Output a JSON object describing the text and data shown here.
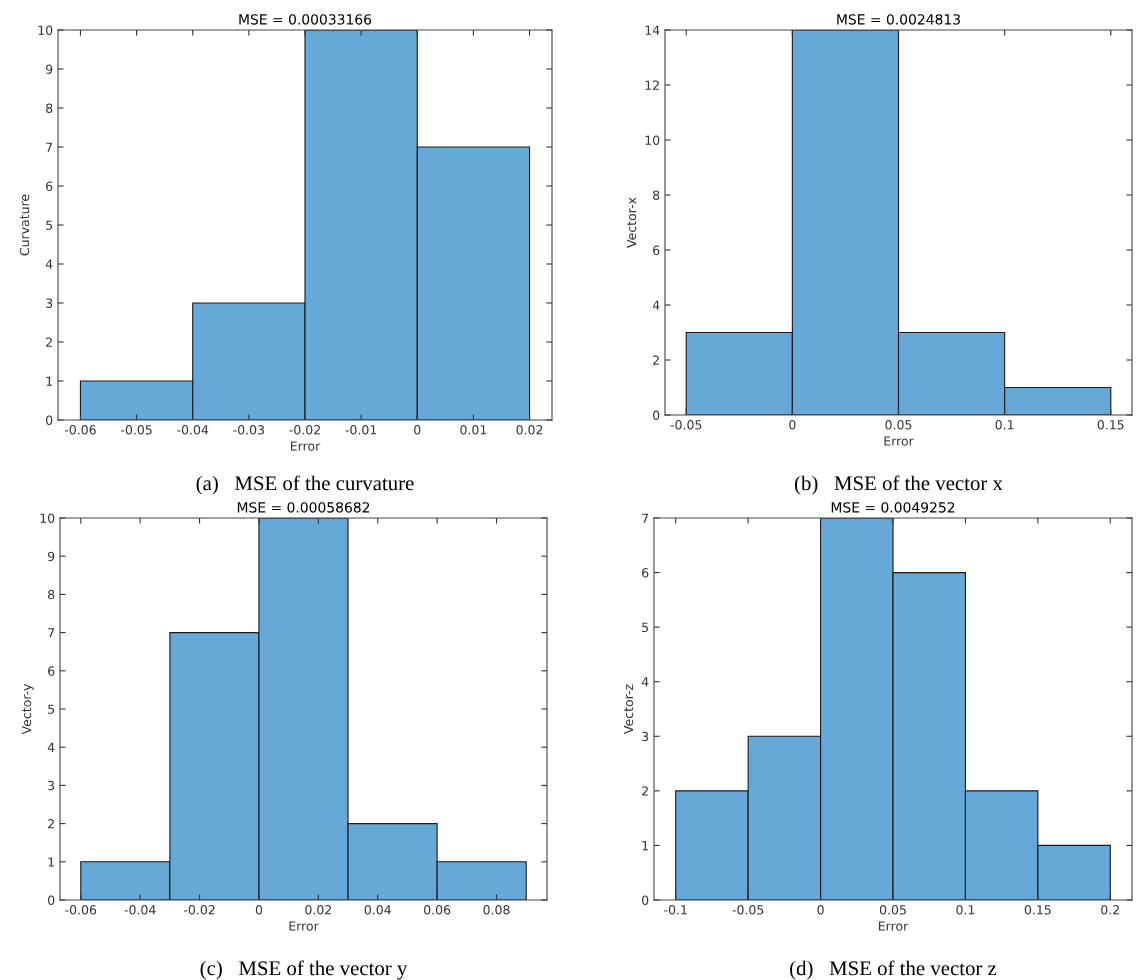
{
  "chart_data": [
    {
      "type": "histogram",
      "title": "MSE = 0.00033166",
      "xlabel": "Error",
      "ylabel": "Curvature",
      "bins": [
        -0.06,
        -0.04,
        -0.02,
        0,
        0.02
      ],
      "values": [
        1,
        3,
        10,
        7
      ],
      "color": "#66a8d8",
      "xlim": [
        -0.064,
        0.024
      ],
      "xticks": [
        -0.06,
        -0.05,
        -0.04,
        -0.03,
        -0.02,
        -0.01,
        0,
        0.01,
        0.02
      ],
      "ylim": [
        0,
        10
      ],
      "yticks": [
        0,
        1,
        2,
        3,
        4,
        5,
        6,
        7,
        8,
        9,
        10
      ],
      "grid": false,
      "annotations": [
        "(a)   MSE of the curvature"
      ]
    },
    {
      "type": "histogram",
      "title": "MSE = 0.0024813",
      "xlabel": "Error",
      "ylabel": "Vector-x",
      "bins": [
        -0.05,
        0,
        0.05,
        0.1,
        0.15
      ],
      "values": [
        3,
        14,
        3,
        1
      ],
      "color": "#66a8d8",
      "xlim": [
        -0.06,
        0.16
      ],
      "xticks": [
        -0.05,
        0,
        0.05,
        0.1,
        0.15
      ],
      "ylim": [
        0,
        14
      ],
      "yticks": [
        0,
        2,
        4,
        6,
        8,
        10,
        12,
        14
      ],
      "grid": false,
      "annotations": [
        "(b)   MSE of the vector x"
      ]
    },
    {
      "type": "histogram",
      "title": "MSE = 0.00058682",
      "xlabel": "Error",
      "ylabel": "Vector-y",
      "bins": [
        -0.06,
        -0.03,
        0,
        0.03,
        0.06,
        0.09
      ],
      "values": [
        1,
        7,
        10,
        2,
        1
      ],
      "color": "#66a8d8",
      "xlim": [
        -0.067,
        0.097
      ],
      "xticks": [
        -0.06,
        -0.04,
        -0.02,
        0,
        0.02,
        0.04,
        0.06,
        0.08
      ],
      "ylim": [
        0,
        10
      ],
      "yticks": [
        0,
        1,
        2,
        3,
        4,
        5,
        6,
        7,
        8,
        9,
        10
      ],
      "grid": false,
      "annotations": [
        "(c)   MSE of the vector y"
      ]
    },
    {
      "type": "histogram",
      "title": "MSE = 0.0049252",
      "xlabel": "Error",
      "ylabel": "Vector-z",
      "bins": [
        -0.1,
        -0.05,
        0,
        0.05,
        0.1,
        0.15,
        0.2
      ],
      "values": [
        2,
        3,
        7,
        6,
        2,
        1
      ],
      "color": "#66a8d8",
      "xlim": [
        -0.115,
        0.215
      ],
      "xticks": [
        -0.1,
        -0.05,
        0,
        0.05,
        0.1,
        0.15,
        0.2
      ],
      "ylim": [
        0,
        7
      ],
      "yticks": [
        0,
        1,
        2,
        3,
        4,
        5,
        6,
        7
      ],
      "grid": false,
      "annotations": [
        "(d)   MSE of the vector z"
      ]
    }
  ]
}
